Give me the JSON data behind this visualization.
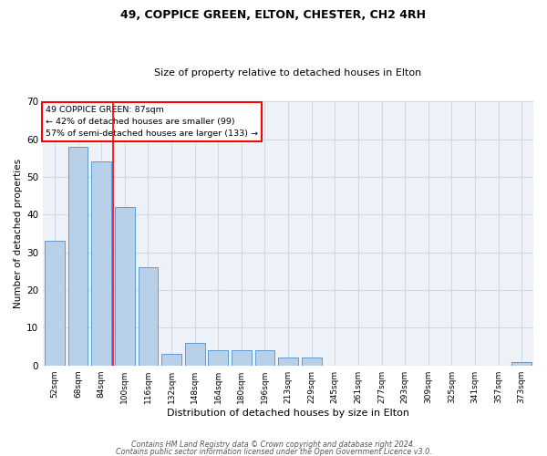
{
  "title1": "49, COPPICE GREEN, ELTON, CHESTER, CH2 4RH",
  "title2": "Size of property relative to detached houses in Elton",
  "xlabel": "Distribution of detached houses by size in Elton",
  "ylabel": "Number of detached properties",
  "categories": [
    "52sqm",
    "68sqm",
    "84sqm",
    "100sqm",
    "116sqm",
    "132sqm",
    "148sqm",
    "164sqm",
    "180sqm",
    "196sqm",
    "213sqm",
    "229sqm",
    "245sqm",
    "261sqm",
    "277sqm",
    "293sqm",
    "309sqm",
    "325sqm",
    "341sqm",
    "357sqm",
    "373sqm"
  ],
  "values": [
    33,
    58,
    54,
    42,
    26,
    3,
    6,
    4,
    4,
    4,
    2,
    2,
    0,
    0,
    0,
    0,
    0,
    0,
    0,
    0,
    1
  ],
  "bar_color": "#b8d0e8",
  "bar_edge_color": "#5b9bd5",
  "redline_x": 2.5,
  "annotation_lines": [
    "49 COPPICE GREEN: 87sqm",
    "← 42% of detached houses are smaller (99)",
    "57% of semi-detached houses are larger (133) →"
  ],
  "ylim": [
    0,
    70
  ],
  "yticks": [
    0,
    10,
    20,
    30,
    40,
    50,
    60,
    70
  ],
  "footnote1": "Contains HM Land Registry data © Crown copyright and database right 2024.",
  "footnote2": "Contains public sector information licensed under the Open Government Licence v3.0.",
  "grid_color": "#d0d8e8",
  "background_color": "#eef2f8"
}
